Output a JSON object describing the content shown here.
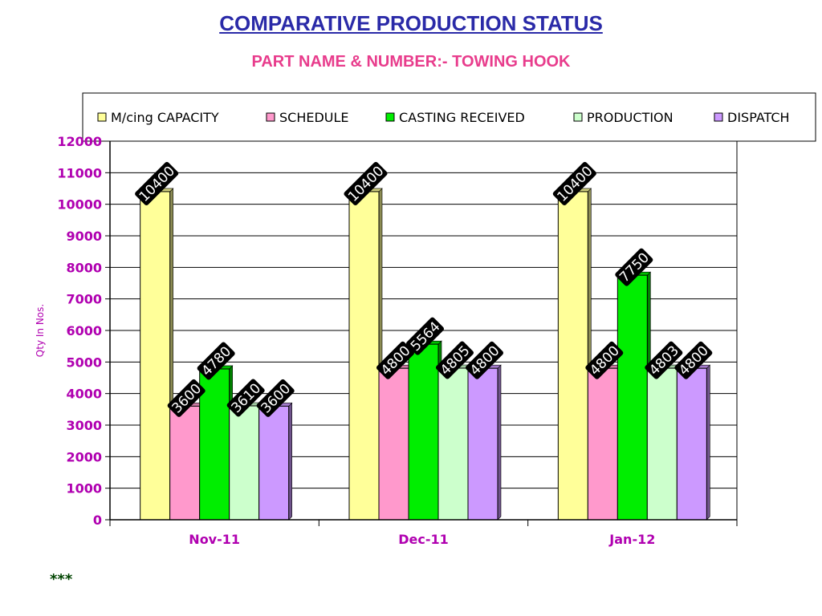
{
  "page": {
    "footnote": "***"
  },
  "chart_data": {
    "type": "bar",
    "title": "COMPARATIVE PRODUCTION STATUS",
    "subtitle": "PART NAME & NUMBER:- TOWING HOOK",
    "xlabel": "",
    "ylabel": "Qty In  Nos.",
    "ylim": [
      0,
      12000
    ],
    "yticks": [
      0,
      1000,
      2000,
      3000,
      4000,
      5000,
      6000,
      7000,
      8000,
      9000,
      10000,
      11000,
      12000
    ],
    "categories": [
      "Nov-11",
      "Dec-11",
      "Jan-12"
    ],
    "series": [
      {
        "name": "M/cing CAPACITY",
        "color": "#ffff99",
        "values": [
          10400,
          10400,
          10400
        ]
      },
      {
        "name": "SCHEDULE",
        "color": "#ff99cc",
        "values": [
          3600,
          4800,
          4800
        ]
      },
      {
        "name": "CASTING RECEIVED",
        "color": "#00ee00",
        "values": [
          4780,
          5564,
          7750
        ]
      },
      {
        "name": "PRODUCTION",
        "color": "#ccffcc",
        "values": [
          3610,
          4805,
          4803
        ]
      },
      {
        "name": "DISPATCH",
        "color": "#cc99ff",
        "values": [
          3600,
          4800,
          4800
        ]
      }
    ],
    "data_labels": [
      [
        "10400",
        "3600",
        "4780",
        "3610",
        "3600"
      ],
      [
        "10400",
        "4800",
        "5564",
        "4805",
        "4800"
      ],
      [
        "10400",
        "4800",
        "7750",
        "4803",
        "4800"
      ]
    ],
    "grid": true,
    "legend_position": "top",
    "axis_text_color": "#b000b0",
    "xtick_color": "#b000b0"
  }
}
